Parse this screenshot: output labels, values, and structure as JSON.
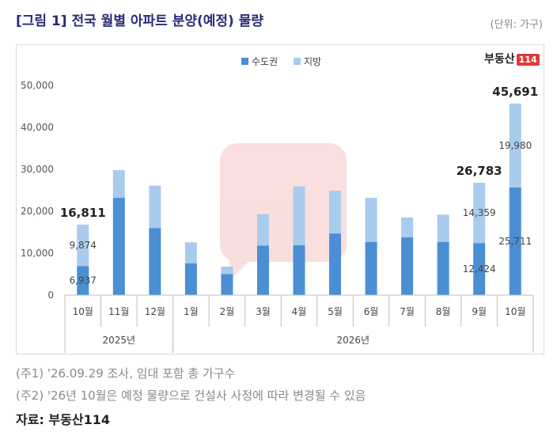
{
  "header": {
    "title": "[그림 1] 전국 월별 아파트 분양(예정) 물량",
    "unit": "(단위: 가구)"
  },
  "brand": {
    "name": "부동산",
    "badge": "114"
  },
  "notes": {
    "note1": "(주1) '26.09.29 조사, 임대 포함 총 가구수",
    "note2": "(주2) '26년 10월은 예정 물량으로 건설사 사정에 따라 변경될 수 있음",
    "source": "자료: 부동산114"
  },
  "colors": {
    "capital": "#4a8fd4",
    "region": "#a9cbed"
  },
  "chart_data": {
    "type": "bar",
    "stacked": true,
    "categories": [
      "10월",
      "11월",
      "12월",
      "1월",
      "2월",
      "3월",
      "4월",
      "5월",
      "6월",
      "7월",
      "8월",
      "9월",
      "10월"
    ],
    "year_groups": [
      {
        "label": "2025년",
        "start": 0,
        "end": 2
      },
      {
        "label": "2026년",
        "start": 3,
        "end": 12
      }
    ],
    "series": [
      {
        "name": "수도권",
        "values": [
          6937,
          23200,
          16000,
          7600,
          5000,
          11800,
          11900,
          14700,
          12700,
          13800,
          12700,
          12424,
          25711
        ]
      },
      {
        "name": "지방",
        "values": [
          9874,
          6600,
          10100,
          5000,
          1800,
          7500,
          14000,
          10200,
          10500,
          4700,
          6500,
          14359,
          19980
        ]
      }
    ],
    "totals": [
      {
        "index": 0,
        "label": "16,811"
      },
      {
        "index": 11,
        "label": "26,783"
      },
      {
        "index": 12,
        "label": "45,691"
      }
    ],
    "segment_labels": [
      {
        "index": 0,
        "series": 0,
        "label": "6,937"
      },
      {
        "index": 0,
        "series": 1,
        "label": "9,874"
      },
      {
        "index": 11,
        "series": 0,
        "label": "12,424"
      },
      {
        "index": 11,
        "series": 1,
        "label": "14,359"
      },
      {
        "index": 12,
        "series": 0,
        "label": "25,711"
      },
      {
        "index": 12,
        "series": 1,
        "label": "19,980"
      }
    ],
    "yticks": [
      "0",
      "10,000",
      "20,000",
      "30,000",
      "40,000",
      "50,000"
    ],
    "ylim": [
      0,
      50000
    ],
    "legend_position": "top"
  }
}
